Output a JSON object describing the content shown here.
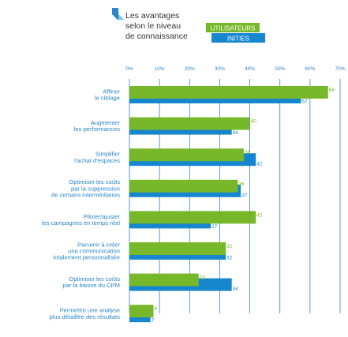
{
  "header": {
    "title_lines": [
      "Les avantages",
      "selon le niveau",
      "de connaissance"
    ],
    "icon": "folded-corner-marker-icon"
  },
  "colors": {
    "utilisateurs": "#76b82a",
    "inities": "#1687cf",
    "text": "#2a86c8",
    "title": "#333333",
    "grid": "#2a86c8",
    "tick": "#2a86c8"
  },
  "chart_data": {
    "type": "bar",
    "orientation": "horizontal",
    "title": "Les avantages selon le niveau de connaissance",
    "categories": [
      "Affiner le ciblage",
      "Augmenter les performances",
      "Simplifier l'achat d'espaces",
      "Optimiser les coûts par la suppression de certains intermédiaires",
      "Piloter/ajuster les campagnes en temps réel",
      "Parvenir à créer une communication totalement personnalisée",
      "Optimiser les coûts par la baisse du CPM",
      "Permettre une analyse plus détaillée des résultats"
    ],
    "category_lines": [
      [
        "Affiner",
        "le ciblage"
      ],
      [
        "Augmenter",
        "les performances"
      ],
      [
        "Simplifier",
        "l'achat d'espaces"
      ],
      [
        "Optimiser les coûts",
        "par la suppression",
        "de certains intermédiaires"
      ],
      [
        "Piloter/ajuster",
        "les campagnes en temps réel"
      ],
      [
        "Parvenir à créer",
        "une communication",
        "totalement personnalisée"
      ],
      [
        "Optimiser les coûts",
        "par la baisse du CPM"
      ],
      [
        "Permettre une analyse",
        "plus détaillée des résultats"
      ]
    ],
    "series": [
      {
        "name": "UTILISATEURS",
        "values": [
          66,
          40,
          38,
          36,
          42,
          32,
          23,
          8
        ]
      },
      {
        "name": "INITIES",
        "values": [
          57,
          34,
          42,
          37,
          27,
          32,
          34,
          7
        ]
      }
    ],
    "x_ticks": [
      0,
      10,
      20,
      30,
      40,
      50,
      60,
      70
    ],
    "x_tick_labels": [
      "0%",
      "10%",
      "20%",
      "30%",
      "40%",
      "50%",
      "60%",
      "70%"
    ],
    "xlim": [
      0,
      70
    ],
    "grid": true,
    "legend": "top-right"
  }
}
